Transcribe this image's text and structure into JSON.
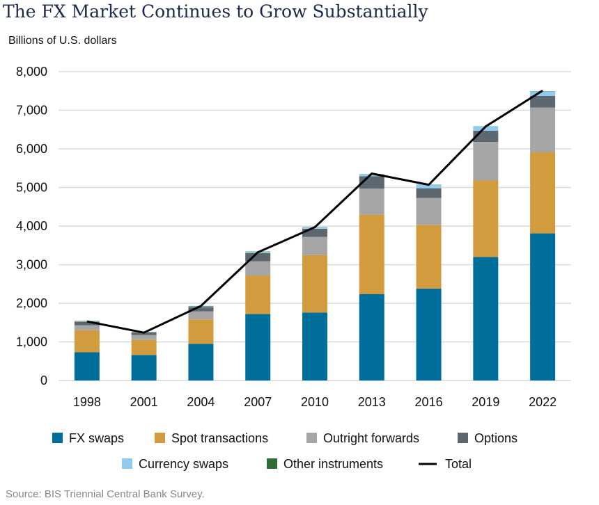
{
  "title": "The FX Market Continues to Grow Substantially",
  "subtitle": "Billions of U.S. dollars",
  "source": "Source: BIS Triennial Central Bank Survey.",
  "chart_data": {
    "type": "bar",
    "stacked": true,
    "title": "The FX Market Continues to Grow Substantially",
    "ylabel": "Billions of U.S. dollars",
    "ylim": [
      0,
      8000
    ],
    "yticks": [
      0,
      1000,
      2000,
      3000,
      4000,
      5000,
      6000,
      7000,
      8000
    ],
    "ytick_labels": [
      "0",
      "1,000",
      "2,000",
      "3,000",
      "4,000",
      "5,000",
      "6,000",
      "7,000",
      "8,000"
    ],
    "grid": true,
    "legend_position": "bottom",
    "categories": [
      "1998",
      "2001",
      "2004",
      "2007",
      "2010",
      "2013",
      "2016",
      "2019",
      "2022"
    ],
    "series": [
      {
        "name": "FX swaps",
        "color": "#006e9b",
        "values": [
          730,
          660,
          950,
          1720,
          1760,
          2240,
          2380,
          3200,
          3810
        ]
      },
      {
        "name": "Spot transactions",
        "color": "#d29c3e",
        "values": [
          570,
          390,
          630,
          1000,
          1490,
          2050,
          1650,
          1980,
          2100
        ]
      },
      {
        "name": "Outright forwards",
        "color": "#a6a6a6",
        "values": [
          130,
          130,
          210,
          370,
          470,
          680,
          700,
          1000,
          1160
        ]
      },
      {
        "name": "Options",
        "color": "#5d6770",
        "values": [
          90,
          60,
          110,
          210,
          210,
          320,
          250,
          290,
          300
        ]
      },
      {
        "name": "Currency swaps",
        "color": "#8ecbef",
        "values": [
          10,
          10,
          20,
          30,
          40,
          50,
          90,
          110,
          120
        ]
      },
      {
        "name": "Other instruments",
        "color": "#2e6e36",
        "values": [
          10,
          10,
          10,
          10,
          5,
          5,
          5,
          5,
          5
        ]
      }
    ],
    "total": {
      "name": "Total",
      "color": "#000000",
      "values": [
        1530,
        1240,
        1930,
        3320,
        3970,
        5360,
        5070,
        6580,
        7510
      ]
    }
  }
}
